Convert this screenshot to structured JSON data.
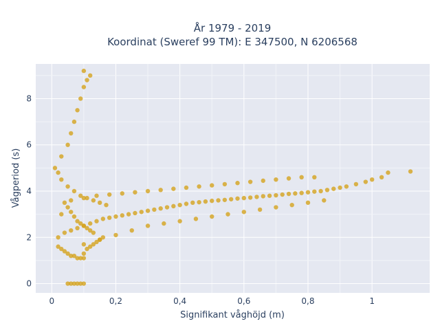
{
  "chart_data": {
    "type": "scatter",
    "title_line1": "År 1979 - 2019",
    "title_line2": "Koordinat (Sweref 99 TM): E 347500, N 6206568",
    "xlabel": "Signifikant våghöjd (m)",
    "ylabel": "Vågperiod (s)",
    "xlim": [
      -0.05,
      1.18
    ],
    "ylim": [
      -0.4,
      9.5
    ],
    "x_ticks": [
      0,
      0.2,
      0.4,
      0.6,
      0.8,
      1
    ],
    "x_tick_labels": [
      "0",
      "0,2",
      "0,4",
      "0,6",
      "0,8",
      "1"
    ],
    "y_ticks": [
      0,
      2,
      4,
      6,
      8
    ],
    "y_tick_labels": [
      "0",
      "2",
      "4",
      "6",
      "8"
    ],
    "grid": true,
    "marker_color": "#d4a21e",
    "plot_bg": "#e5e8f1",
    "points": {
      "x": [
        0.02,
        0.03,
        0.04,
        0.05,
        0.06,
        0.07,
        0.08,
        0.09,
        0.1,
        0.1,
        0.11,
        0.12,
        0.13,
        0.14,
        0.15,
        0.16,
        0.03,
        0.04,
        0.05,
        0.06,
        0.07,
        0.08,
        0.09,
        0.1,
        0.11,
        0.12,
        0.13,
        0.01,
        0.02,
        0.03,
        0.05,
        0.07,
        0.09,
        0.11,
        0.13,
        0.15,
        0.17,
        0.03,
        0.05,
        0.06,
        0.07,
        0.08,
        0.09,
        0.1,
        0.11,
        0.12,
        0.1,
        0.02,
        0.04,
        0.06,
        0.08,
        0.1,
        0.12,
        0.14,
        0.16,
        0.18,
        0.2,
        0.22,
        0.24,
        0.26,
        0.28,
        0.3,
        0.32,
        0.34,
        0.36,
        0.38,
        0.4,
        0.42,
        0.44,
        0.46,
        0.48,
        0.5,
        0.52,
        0.54,
        0.56,
        0.58,
        0.6,
        0.62,
        0.64,
        0.66,
        0.68,
        0.7,
        0.72,
        0.74,
        0.76,
        0.78,
        0.8,
        0.82,
        0.84,
        0.86,
        0.88,
        0.9,
        0.92,
        0.95,
        0.98,
        1.0,
        1.03,
        1.05,
        1.12,
        0.06,
        0.1,
        0.14,
        0.18,
        0.22,
        0.26,
        0.3,
        0.34,
        0.38,
        0.42,
        0.46,
        0.5,
        0.54,
        0.58,
        0.62,
        0.66,
        0.7,
        0.74,
        0.78,
        0.82,
        0.1,
        0.15,
        0.2,
        0.25,
        0.3,
        0.35,
        0.4,
        0.45,
        0.5,
        0.55,
        0.6,
        0.65,
        0.7,
        0.75,
        0.8,
        0.85,
        0.05,
        0.06,
        0.07,
        0.08,
        0.09,
        0.1
      ],
      "y": [
        1.6,
        1.5,
        1.4,
        1.3,
        1.2,
        1.2,
        1.1,
        1.1,
        1.1,
        1.3,
        1.5,
        1.6,
        1.7,
        1.8,
        1.9,
        2.0,
        3.0,
        3.5,
        3.3,
        3.1,
        2.9,
        2.7,
        2.6,
        2.5,
        2.4,
        2.3,
        2.2,
        5.0,
        4.8,
        4.5,
        4.2,
        4.0,
        3.8,
        3.7,
        3.6,
        3.5,
        3.4,
        5.5,
        6.0,
        6.5,
        7.0,
        7.5,
        8.0,
        8.5,
        8.8,
        9.0,
        9.2,
        2.0,
        2.2,
        2.3,
        2.4,
        2.5,
        2.6,
        2.7,
        2.8,
        2.85,
        2.9,
        2.95,
        3.0,
        3.05,
        3.1,
        3.15,
        3.2,
        3.25,
        3.3,
        3.35,
        3.4,
        3.45,
        3.5,
        3.52,
        3.55,
        3.58,
        3.6,
        3.62,
        3.65,
        3.68,
        3.7,
        3.72,
        3.75,
        3.78,
        3.8,
        3.82,
        3.85,
        3.88,
        3.9,
        3.92,
        3.95,
        3.98,
        4.0,
        4.05,
        4.1,
        4.15,
        4.2,
        4.3,
        4.4,
        4.5,
        4.6,
        4.8,
        4.85,
        3.6,
        3.7,
        3.8,
        3.85,
        3.9,
        3.95,
        4.0,
        4.05,
        4.1,
        4.15,
        4.2,
        4.25,
        4.3,
        4.35,
        4.4,
        4.45,
        4.5,
        4.55,
        4.6,
        4.6,
        1.7,
        1.9,
        2.1,
        2.3,
        2.5,
        2.6,
        2.7,
        2.8,
        2.9,
        3.0,
        3.1,
        3.2,
        3.3,
        3.4,
        3.5,
        3.6,
        0.0,
        0.0,
        0.0,
        0.0,
        0.0,
        0.0
      ]
    }
  }
}
